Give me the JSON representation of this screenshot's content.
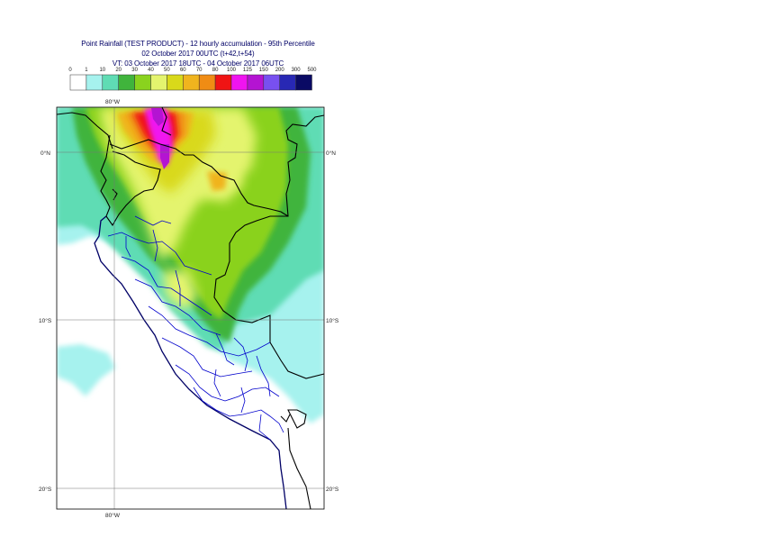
{
  "header": {
    "title": "Point Rainfall (TEST PRODUCT) - 12 hourly accumulation - 95th Percentile",
    "base_time": "02 October 2017 00UTC (t+42,t+54)",
    "valid_time": "VT: 03 October 2017 18UTC - 04 October 2017 06UTC"
  },
  "legend": {
    "thresholds": [
      "0",
      "1",
      "10",
      "20",
      "30",
      "40",
      "50",
      "60",
      "70",
      "80",
      "100",
      "125",
      "150",
      "200",
      "300",
      "500"
    ],
    "colors": [
      "#ffffff",
      "#a6f2ee",
      "#5fdcb4",
      "#40b43c",
      "#8ad21e",
      "#e4f46e",
      "#d9d91a",
      "#f0b41e",
      "#f08c14",
      "#f01414",
      "#f014f0",
      "#b414d2",
      "#7850f0",
      "#2828b4",
      "#0a0a64"
    ]
  },
  "axes": {
    "lon_top": "80°W",
    "lon_bottom": "80°W",
    "lat_labels": [
      "0°N",
      "10°S",
      "20°S"
    ]
  }
}
